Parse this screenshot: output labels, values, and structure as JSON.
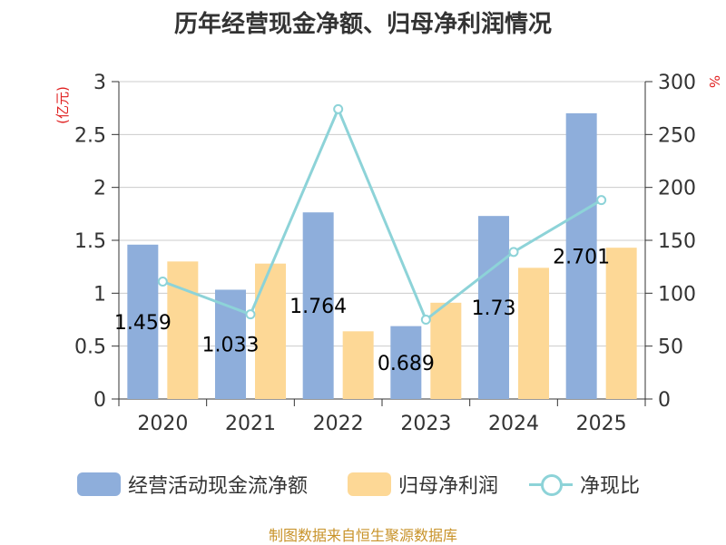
{
  "title": "历年经营现金净额、归母净利润情况",
  "source": "制图数据来自恒生聚源数据库",
  "colors": {
    "bar1": "#8eaedb",
    "bar2": "#fdd896",
    "line": "#8dd3d8",
    "axis_unit": "#e02020",
    "source": "#c8932a",
    "text": "#333333",
    "grid": "#cccccc"
  },
  "chart_data": {
    "type": "bar",
    "title": "历年经营现金净额、归母净利润情况",
    "categories": [
      "2020",
      "2021",
      "2022",
      "2023",
      "2024",
      "2025"
    ],
    "y_left": {
      "label": "(亿元)",
      "ylim": [
        0,
        3
      ],
      "ticks": [
        0,
        0.5,
        1,
        1.5,
        2,
        2.5,
        3
      ],
      "tick_labels": [
        "0",
        "0.5",
        "1",
        "1.5",
        "2",
        "2.5",
        "3"
      ]
    },
    "y_right": {
      "label": "%",
      "ylim": [
        0,
        300
      ],
      "ticks": [
        0,
        50,
        100,
        150,
        200,
        250,
        300
      ],
      "tick_labels": [
        "0",
        "50",
        "100",
        "150",
        "200",
        "250",
        "300"
      ]
    },
    "grid": true,
    "legend_position": "bottom",
    "series": [
      {
        "name": "经营活动现金流净额",
        "type": "bar",
        "axis": "left",
        "values": [
          1.459,
          1.033,
          1.764,
          0.689,
          1.73,
          2.701
        ],
        "labels": [
          "1.459",
          "1.033",
          "1.764",
          "0.689",
          "1.73",
          "2.701"
        ]
      },
      {
        "name": "归母净利润",
        "type": "bar",
        "axis": "left",
        "values": [
          1.3,
          1.28,
          0.64,
          0.91,
          1.24,
          1.43
        ]
      },
      {
        "name": "净现比",
        "type": "line",
        "axis": "right",
        "values": [
          111,
          80,
          274,
          75,
          139,
          188
        ]
      }
    ]
  }
}
